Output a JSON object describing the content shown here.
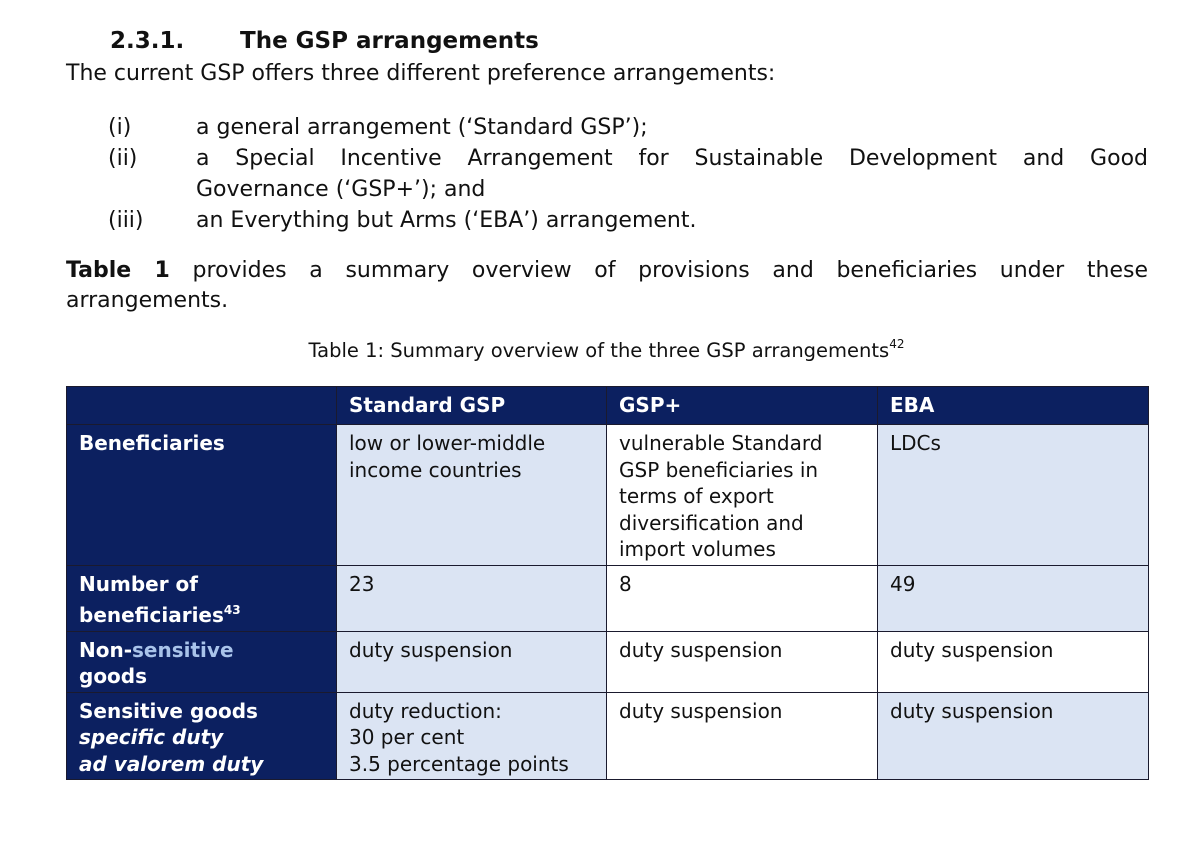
{
  "section": {
    "number": "2.3.1.",
    "title": "The GSP arrangements"
  },
  "intro": "The current GSP offers three different preference arrangements:",
  "arrangements": [
    {
      "roman": "(i)",
      "text": "a general arrangement (‘Standard GSP’);"
    },
    {
      "roman": "(ii)",
      "text_line1": "a Special Incentive Arrangement for Sustainable Development and Good",
      "text_line2": "Governance (‘GSP+’); and"
    },
    {
      "roman": "(iii)",
      "text": "an Everything but Arms (‘EBA’) arrangement."
    }
  ],
  "paragraph": {
    "bold_ref": "Table 1",
    "line1_rest": "provides a summary overview of provisions and beneficiaries under these",
    "line2": "arrangements."
  },
  "caption": {
    "text": "Table 1: Summary overview of the three GSP arrangements",
    "footnote": "42"
  },
  "table": {
    "columns": [
      "",
      "Standard GSP",
      "GSP+",
      "EBA"
    ],
    "rows": [
      {
        "label": "Beneficiaries",
        "standard": [
          "low or lower-middle",
          "income countries"
        ],
        "gsp_plus": [
          "vulnerable Standard",
          "GSP beneficiaries in",
          "terms of export",
          "diversification and",
          "import volumes"
        ],
        "eba": [
          "LDCs"
        ]
      },
      {
        "label_line1": "Number of",
        "label_line2": "beneficiaries",
        "label_footnote": "43",
        "standard": "23",
        "gsp_plus": "8",
        "eba": "49"
      },
      {
        "label_part1": "Non-",
        "label_part2": "sensitive",
        "label_line2": "goods",
        "standard": "duty suspension",
        "gsp_plus": "duty suspension",
        "eba": "duty suspension"
      },
      {
        "label_line1": "Sensitive goods",
        "label_line2": "specific duty",
        "label_line3": "ad valorem duty",
        "standard": [
          "duty reduction:",
          "30 per cent",
          "3.5 percentage points"
        ],
        "gsp_plus": "duty suspension",
        "eba": "duty suspension"
      }
    ]
  },
  "colors": {
    "header_bg": "#0c2060",
    "cell_light_bg": "#dbe4f3",
    "highlight_text": "#a9c3ea"
  }
}
